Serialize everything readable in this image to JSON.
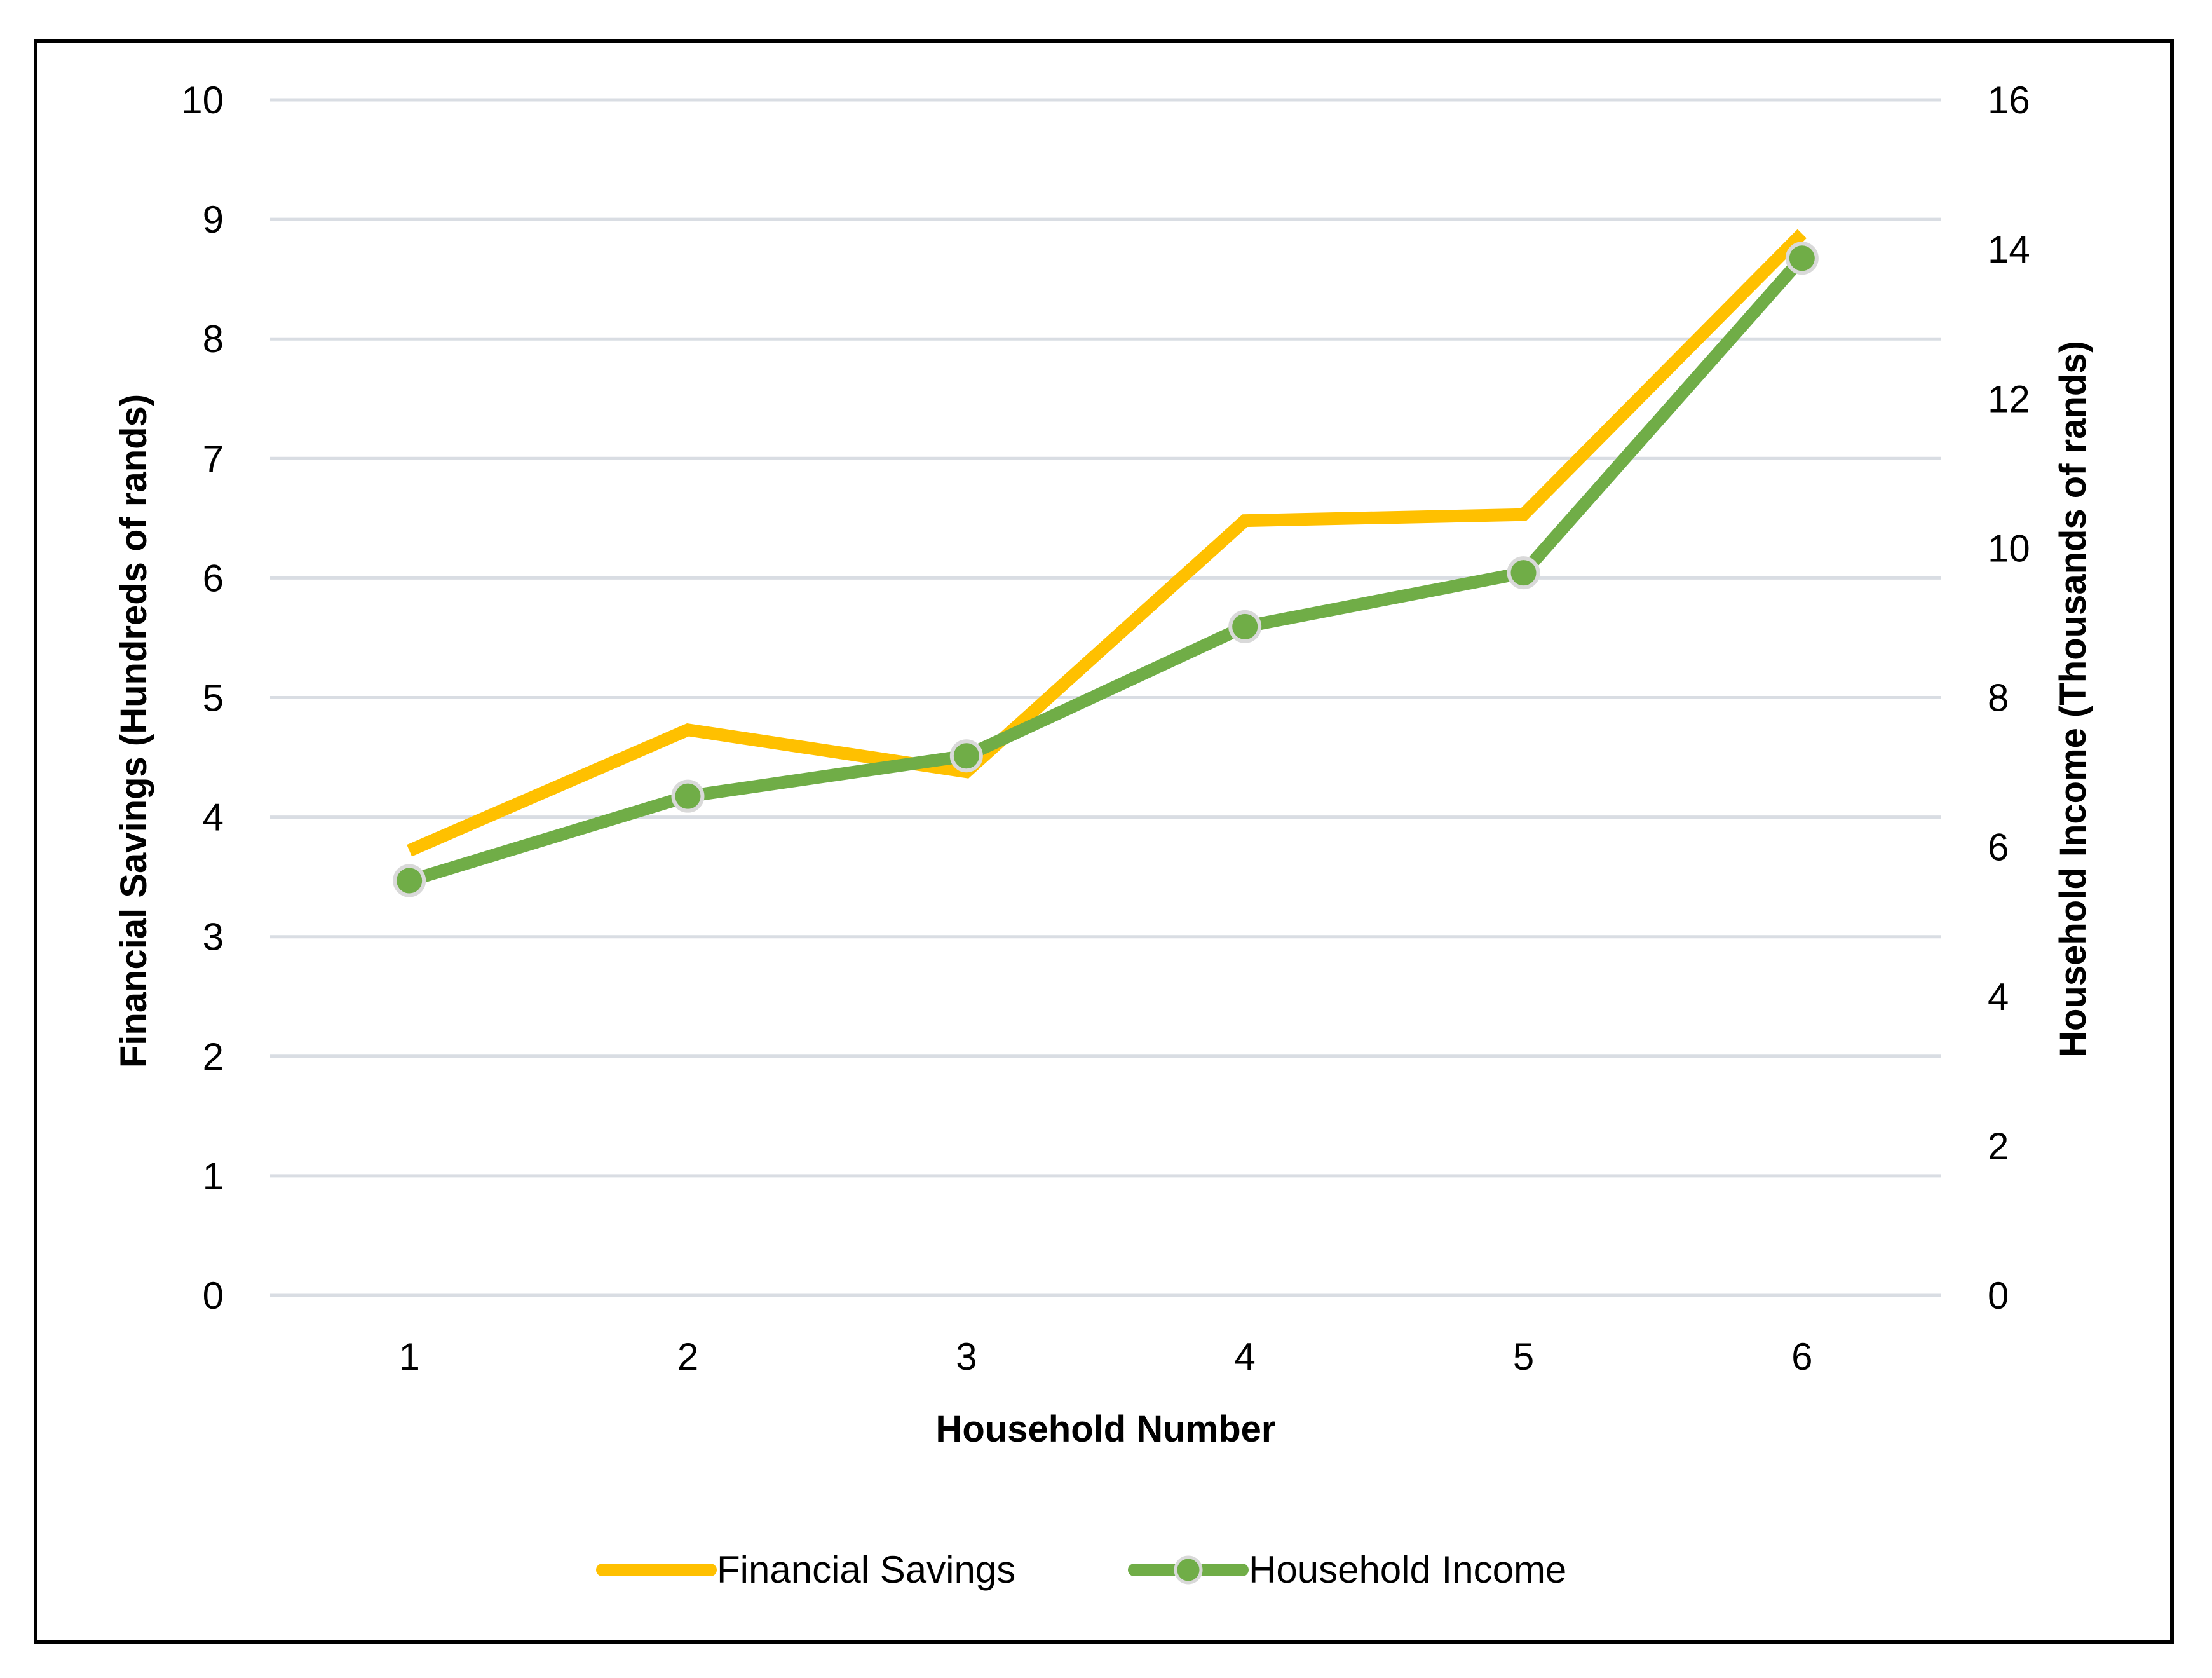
{
  "chart_data": {
    "type": "line",
    "categories": [
      "1",
      "2",
      "3",
      "4",
      "5",
      "6"
    ],
    "xlabel": "Household Number",
    "ylabel": "Financial Savings (Hundreds of rands)",
    "y2label": "Household Income (Thousands of rands)",
    "ylim": [
      0,
      10
    ],
    "y2lim": [
      0,
      16
    ],
    "yticks": [
      "0",
      "1",
      "2",
      "3",
      "4",
      "5",
      "6",
      "7",
      "8",
      "9",
      "10"
    ],
    "y2ticks": [
      "0",
      "2",
      "4",
      "6",
      "8",
      "10",
      "12",
      "14",
      "16"
    ],
    "grid": true,
    "legend_position": "bottom",
    "series": [
      {
        "name": "Financial Savings",
        "axis": "left",
        "color": "#FFC000",
        "markers": false,
        "values": [
          3.72,
          4.73,
          4.38,
          6.48,
          6.53,
          8.88
        ]
      },
      {
        "name": "Household Income",
        "axis": "right",
        "color": "#70AD47",
        "markers": true,
        "values": [
          5.55,
          6.68,
          7.22,
          8.95,
          9.67,
          13.88
        ]
      }
    ]
  }
}
